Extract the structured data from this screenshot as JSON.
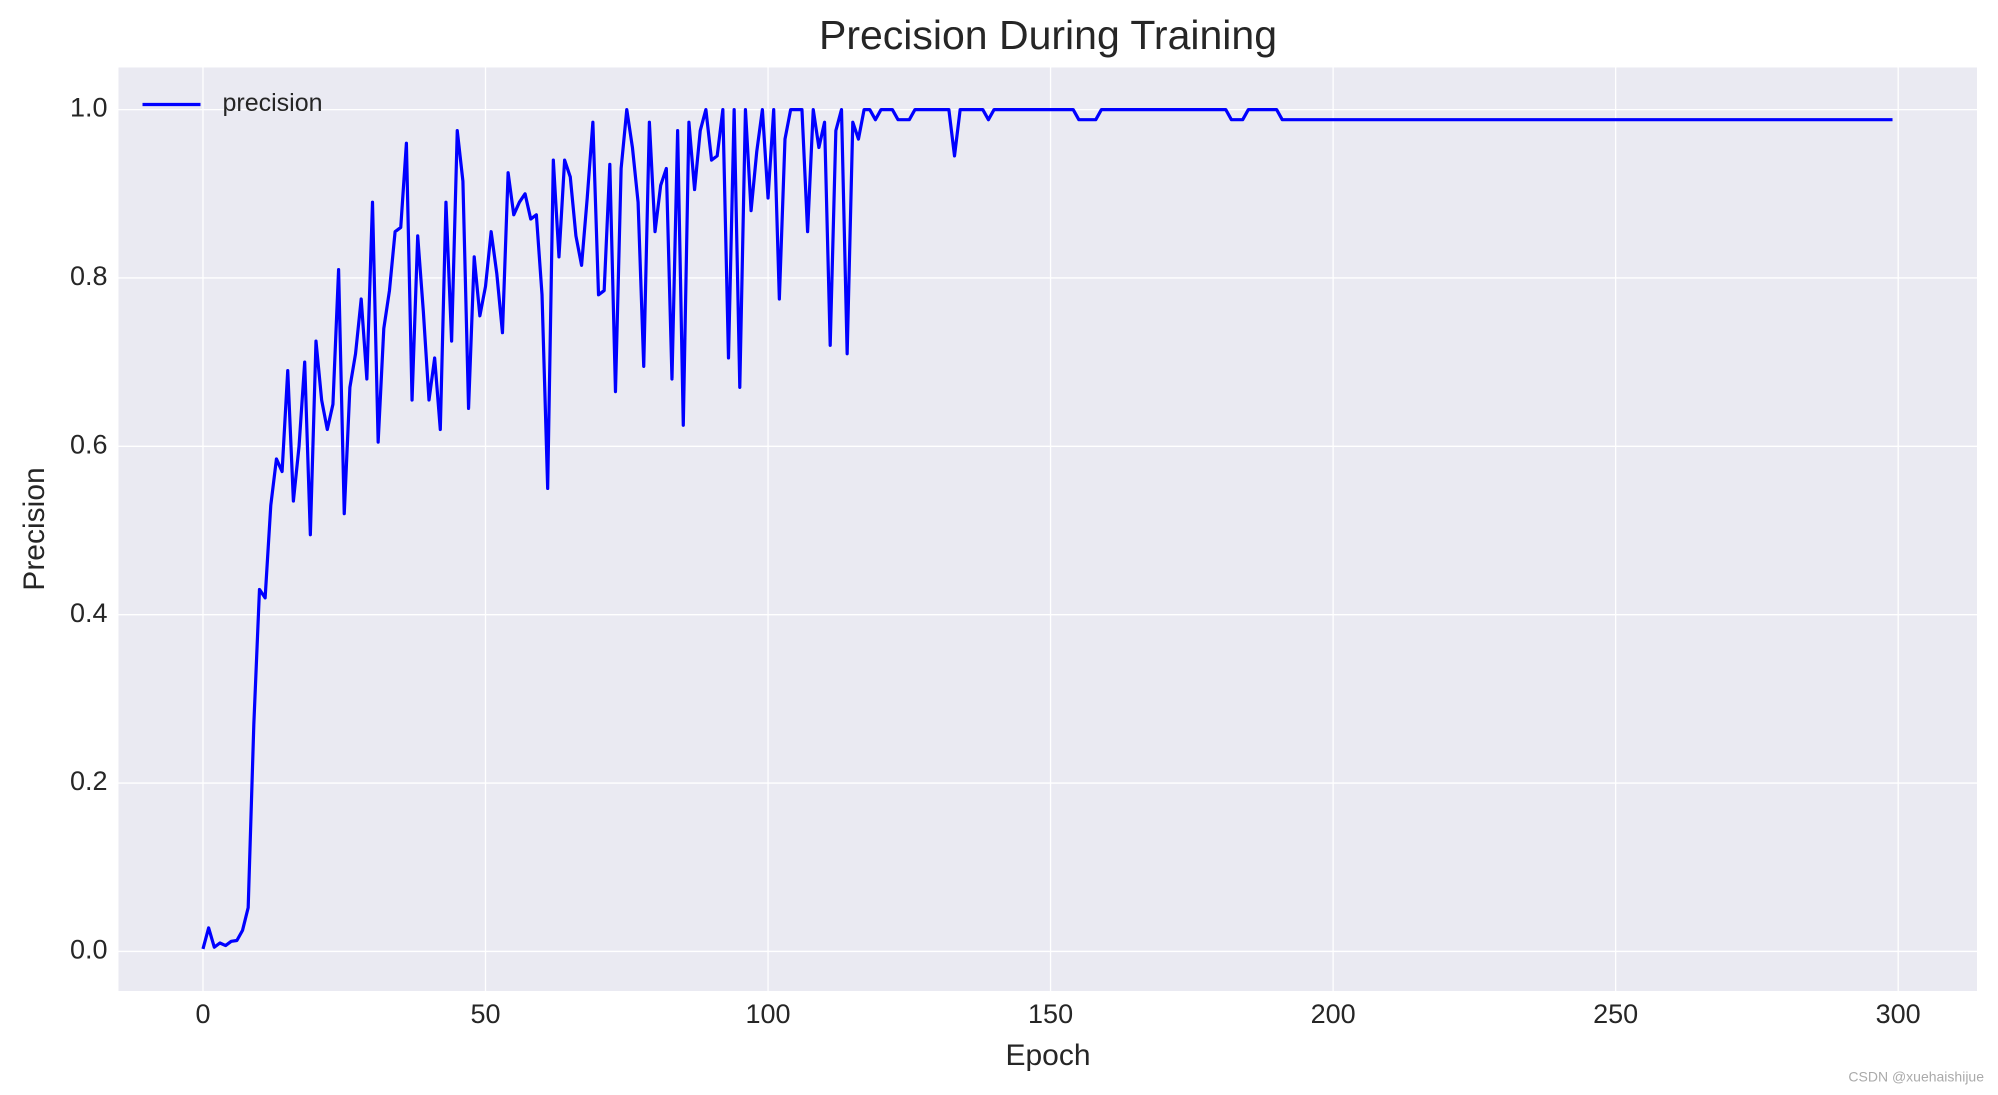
{
  "chart_data": {
    "type": "line",
    "title": "Precision During Training",
    "xlabel": "Epoch",
    "ylabel": "Precision",
    "watermark": "CSDN @xuehaishijue",
    "x": [
      0,
      1,
      2,
      3,
      4,
      5,
      6,
      7,
      8,
      9,
      10,
      11,
      12,
      13,
      14,
      15,
      16,
      17,
      18,
      19,
      20,
      21,
      22,
      23,
      24,
      25,
      26,
      27,
      28,
      29,
      30,
      31,
      32,
      33,
      34,
      35,
      36,
      37,
      38,
      39,
      40,
      41,
      42,
      43,
      44,
      45,
      46,
      47,
      48,
      49,
      50,
      51,
      52,
      53,
      54,
      55,
      56,
      57,
      58,
      59,
      60,
      61,
      62,
      63,
      64,
      65,
      66,
      67,
      68,
      69,
      70,
      71,
      72,
      73,
      74,
      75,
      76,
      77,
      78,
      79,
      80,
      81,
      82,
      83,
      84,
      85,
      86,
      87,
      88,
      89,
      90,
      91,
      92,
      93,
      94,
      95,
      96,
      97,
      98,
      99,
      100,
      101,
      102,
      103,
      104,
      105,
      106,
      107,
      108,
      109,
      110,
      111,
      112,
      113,
      114,
      115,
      116,
      117,
      118,
      119,
      120,
      121,
      122,
      123,
      124,
      125,
      126,
      127,
      128,
      129,
      130,
      131,
      132,
      133,
      134,
      135,
      136,
      137,
      138,
      139,
      140,
      141,
      142,
      143,
      144,
      145,
      146,
      147,
      148,
      149,
      150,
      151,
      152,
      153,
      154,
      155,
      156,
      157,
      158,
      159,
      160,
      161,
      162,
      163,
      164,
      165,
      166,
      167,
      168,
      169,
      170,
      171,
      172,
      173,
      174,
      175,
      176,
      177,
      178,
      179,
      180,
      181,
      182,
      183,
      184,
      185,
      186,
      187,
      188,
      189,
      190,
      191,
      192,
      193,
      194,
      195,
      196,
      197,
      198,
      199,
      200,
      201,
      202,
      203,
      204,
      205,
      206,
      207,
      208,
      209,
      210,
      211,
      212,
      213,
      214,
      215,
      216,
      217,
      218,
      219,
      220,
      221,
      222,
      223,
      224,
      225,
      226,
      227,
      228,
      229,
      230,
      231,
      232,
      233,
      234,
      235,
      236,
      237,
      238,
      239,
      240,
      241,
      242,
      243,
      244,
      245,
      246,
      247,
      248,
      249,
      250,
      251,
      252,
      253,
      254,
      255,
      256,
      257,
      258,
      259,
      260,
      261,
      262,
      263,
      264,
      265,
      266,
      267,
      268,
      269,
      270,
      271,
      272,
      273,
      274,
      275,
      276,
      277,
      278,
      279,
      280,
      281,
      282,
      283,
      284,
      285,
      286,
      287,
      288,
      289,
      290,
      291,
      292,
      293,
      294,
      295,
      296,
      297,
      298,
      299
    ],
    "series": [
      {
        "name": "precision",
        "color": "#0000ff",
        "values": [
          0.003,
          0.028,
          0.005,
          0.01,
          0.007,
          0.012,
          0.013,
          0.025,
          0.052,
          0.27,
          0.43,
          0.42,
          0.53,
          0.585,
          0.57,
          0.69,
          0.535,
          0.6,
          0.7,
          0.495,
          0.725,
          0.655,
          0.62,
          0.65,
          0.81,
          0.52,
          0.67,
          0.71,
          0.775,
          0.68,
          0.89,
          0.605,
          0.74,
          0.785,
          0.855,
          0.86,
          0.96,
          0.655,
          0.85,
          0.76,
          0.655,
          0.705,
          0.62,
          0.89,
          0.725,
          0.975,
          0.915,
          0.645,
          0.825,
          0.755,
          0.79,
          0.855,
          0.805,
          0.735,
          0.925,
          0.875,
          0.89,
          0.9,
          0.87,
          0.875,
          0.78,
          0.55,
          0.94,
          0.825,
          0.94,
          0.92,
          0.85,
          0.815,
          0.895,
          0.985,
          0.78,
          0.785,
          0.935,
          0.665,
          0.93,
          1.0,
          0.955,
          0.89,
          0.695,
          0.985,
          0.855,
          0.91,
          0.93,
          0.68,
          0.975,
          0.625,
          0.985,
          0.905,
          0.975,
          1.0,
          0.94,
          0.945,
          1.0,
          0.705,
          1.0,
          0.67,
          1.0,
          0.88,
          0.95,
          1.0,
          0.895,
          1.0,
          0.775,
          0.965,
          1.0,
          1.0,
          1.0,
          0.855,
          1.0,
          0.955,
          0.985,
          0.72,
          0.975,
          1.0,
          0.71,
          0.985,
          0.965,
          1.0,
          1.0,
          0.988,
          1.0,
          1.0,
          1.0,
          0.988,
          0.988,
          0.988,
          1.0,
          1.0,
          1.0,
          1.0,
          1.0,
          1.0,
          1.0,
          0.945,
          1.0,
          1.0,
          1.0,
          1.0,
          1.0,
          0.988,
          1.0,
          1.0,
          1.0,
          1.0,
          1.0,
          1.0,
          1.0,
          1.0,
          1.0,
          1.0,
          1.0,
          1.0,
          1.0,
          1.0,
          1.0,
          0.988,
          0.988,
          0.988,
          0.988,
          1.0,
          1.0,
          1.0,
          1.0,
          1.0,
          1.0,
          1.0,
          1.0,
          1.0,
          1.0,
          1.0,
          1.0,
          1.0,
          1.0,
          1.0,
          1.0,
          1.0,
          1.0,
          1.0,
          1.0,
          1.0,
          1.0,
          1.0,
          0.988,
          0.988,
          0.988,
          1.0,
          1.0,
          1.0,
          1.0,
          1.0,
          1.0,
          0.988,
          0.988,
          0.988,
          0.988,
          0.988,
          0.988,
          0.988,
          0.988,
          0.988,
          0.988,
          0.988,
          0.988,
          0.988,
          0.988,
          0.988,
          0.988,
          0.988,
          0.988,
          0.988,
          0.988,
          0.988,
          0.988,
          0.988,
          0.988,
          0.988,
          0.988,
          0.988,
          0.988,
          0.988,
          0.988,
          0.988,
          0.988,
          0.988,
          0.988,
          0.988,
          0.988,
          0.988,
          0.988,
          0.988,
          0.988,
          0.988,
          0.988,
          0.988,
          0.988,
          0.988,
          0.988,
          0.988,
          0.988,
          0.988,
          0.988,
          0.988,
          0.988,
          0.988,
          0.988,
          0.988,
          0.988,
          0.988,
          0.988,
          0.988,
          0.988,
          0.988,
          0.988,
          0.988,
          0.988,
          0.988,
          0.988,
          0.988,
          0.988,
          0.988,
          0.988,
          0.988,
          0.988,
          0.988,
          0.988,
          0.988,
          0.988,
          0.988,
          0.988,
          0.988,
          0.988,
          0.988,
          0.988,
          0.988,
          0.988,
          0.988,
          0.988,
          0.988,
          0.988,
          0.988,
          0.988,
          0.988,
          0.988,
          0.988,
          0.988,
          0.988,
          0.988,
          0.988,
          0.988,
          0.988,
          0.988,
          0.988,
          0.988,
          0.988,
          0.988,
          0.988,
          0.988,
          0.988,
          0.988,
          0.988
        ]
      }
    ],
    "xlim": [
      -14.95,
      313.95
    ],
    "xticks": [
      0,
      50,
      100,
      150,
      200,
      250,
      300
    ],
    "ylim": [
      -0.047,
      1.05
    ],
    "yticks": [
      {
        "value": 0,
        "label": "0.0"
      },
      0.2,
      0.4,
      0.6,
      0.8,
      {
        "value": 1,
        "label": "1.0"
      }
    ],
    "grid": true,
    "legend": "upper left"
  }
}
